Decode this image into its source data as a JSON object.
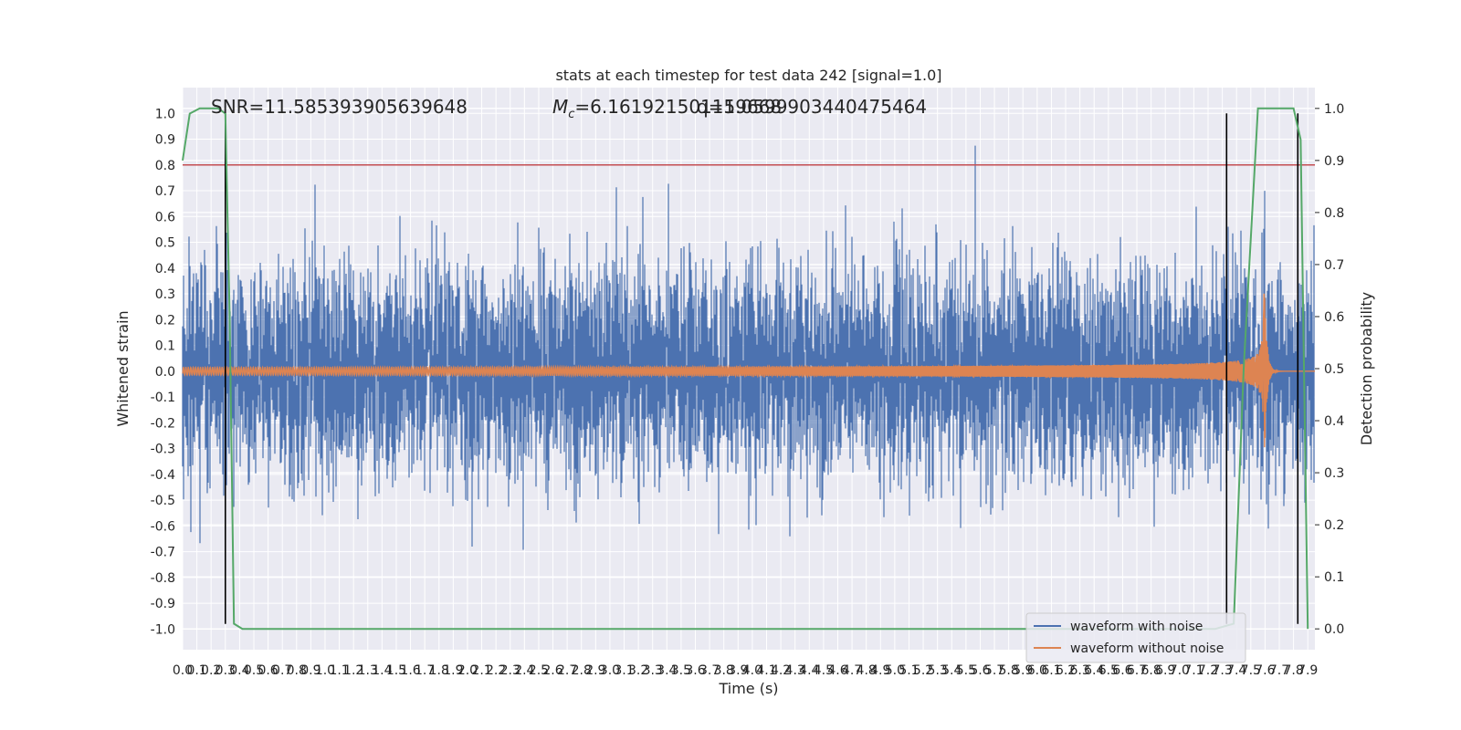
{
  "chart_data": {
    "type": "line",
    "title": "stats at each timestep for test data 242 [signal=1.0]",
    "xlabel": "Time (s)",
    "ylabel": "Whitened strain",
    "ylabel_right": "Detection probability",
    "xlim": [
      0.0,
      7.95
    ],
    "ylim": [
      -1.08,
      1.1
    ],
    "ylim_right": [
      -0.04,
      1.04
    ],
    "x_tick_labels": [
      "0.0",
      "0.1",
      "0.2",
      "0.3",
      "0.4",
      "0.5",
      "0.6",
      "0.7",
      "0.8",
      "0.9",
      "1.0",
      "1.1",
      "1.2",
      "1.3",
      "1.4",
      "1.5",
      "1.6",
      "1.7",
      "1.8",
      "1.9",
      "2.0",
      "2.1",
      "2.2",
      "2.3",
      "2.4",
      "2.5",
      "2.6",
      "2.7",
      "2.8",
      "2.9",
      "3.0",
      "3.1",
      "3.2",
      "3.3",
      "3.4",
      "3.5",
      "3.6",
      "3.7",
      "3.8",
      "3.9",
      "4.0",
      "4.1",
      "4.2",
      "4.3",
      "4.4",
      "4.5",
      "4.6",
      "4.7",
      "4.8",
      "4.9",
      "5.0",
      "5.1",
      "5.2",
      "5.3",
      "5.4",
      "5.5",
      "5.6",
      "5.7",
      "5.8",
      "5.9",
      "6.0",
      "6.1",
      "6.2",
      "6.3",
      "6.4",
      "6.5",
      "6.6",
      "6.7",
      "6.8",
      "6.9",
      "7.0",
      "7.1",
      "7.2",
      "7.3",
      "7.4",
      "7.5",
      "7.6",
      "7.7",
      "7.8",
      "7.9"
    ],
    "y_tick_labels": [
      "1.0",
      "0.9",
      "0.8",
      "0.7",
      "0.6",
      "0.5",
      "0.4",
      "0.3",
      "0.2",
      "0.1",
      "0.0",
      "-0.1",
      "-0.2",
      "-0.3",
      "-0.4",
      "-0.5",
      "-0.6",
      "-0.7",
      "-0.8",
      "-0.9",
      "-1.0"
    ],
    "y_right_tick_labels": [
      "1.0",
      "0.9",
      "0.8",
      "0.7",
      "0.6",
      "0.5",
      "0.4",
      "0.3",
      "0.2",
      "0.1",
      "0.0"
    ],
    "annotations": {
      "snr": "SNR=11.585393905639648",
      "mc_symbol": "M",
      "mc_sub": "c",
      "mc_value": "=6.161921501159668",
      "q": "q=1.0599903440475464"
    },
    "series": [
      {
        "name": "waveform with noise",
        "color": "#4c72b0",
        "noise_sigma": 0.2,
        "max_abs": 1.0
      },
      {
        "name": "waveform without noise",
        "color": "#dd8452",
        "peak_time": 7.6,
        "peak_amplitude": 0.34,
        "min_amplitude": -0.27,
        "early_amplitude": 0.015
      },
      {
        "color": "#55a868",
        "axis": "right",
        "x": [
          0.0,
          0.05,
          0.12,
          0.25,
          0.3,
          0.33,
          0.36,
          0.42,
          7.25,
          7.38,
          7.45,
          7.55,
          7.66,
          7.72,
          7.8,
          7.85,
          7.9
        ],
        "y": [
          0.9,
          0.99,
          1.0,
          1.0,
          0.99,
          0.6,
          0.01,
          0.0,
          0.0,
          0.01,
          0.5,
          1.0,
          1.0,
          1.0,
          1.0,
          0.94,
          0.0
        ]
      }
    ],
    "threshold_line": {
      "y": 0.8,
      "color": "#c44e52"
    },
    "vertical_lines": [
      0.3,
      7.33,
      7.83
    ],
    "legend": {
      "position": "lower right",
      "entries": [
        "waveform with noise",
        "waveform without noise"
      ]
    },
    "grid": true,
    "colors": {
      "background": "#eaeaf2",
      "grid": "#ffffff",
      "noisy": "#4c72b0",
      "clean": "#dd8452",
      "prob": "#55a868",
      "threshold": "#c44e52",
      "marker": "#000000"
    }
  }
}
